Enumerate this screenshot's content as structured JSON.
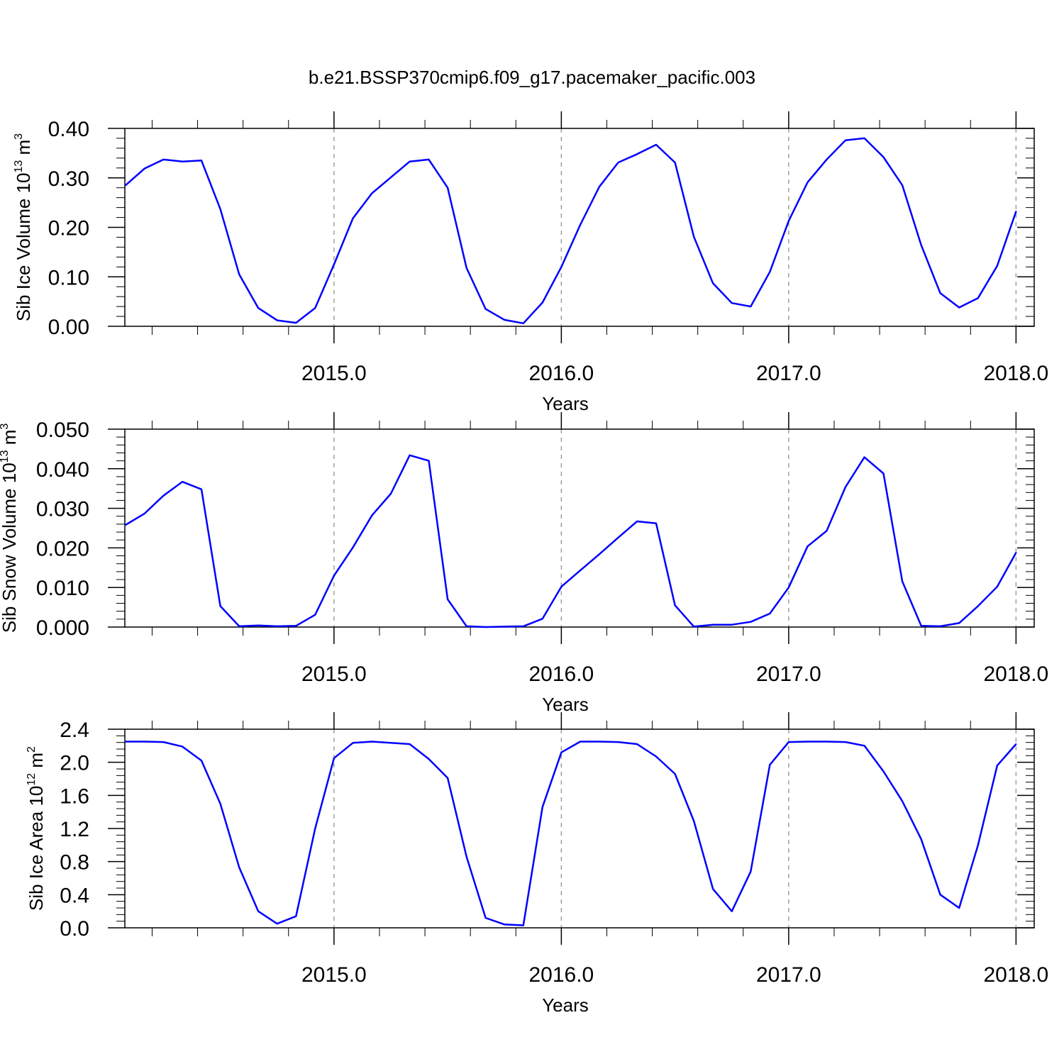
{
  "title": "b.e21.BSSP370cmip6.f09_g17.pacemaker_pacific.003",
  "colors": {
    "line": "#0000ff",
    "frame": "#000000",
    "ref_line": "#a0a0a0"
  },
  "chart_data": [
    {
      "type": "line",
      "ylabel": {
        "text": "Sib Ice Volume 10",
        "exp": "13",
        "unit": " m",
        "unit_exp": "3"
      },
      "xlabel": "Years",
      "xlim": [
        2014.08,
        2018.08
      ],
      "ylim": [
        0,
        0.4
      ],
      "yticks": [
        "0.00",
        "0.10",
        "0.20",
        "0.30",
        "0.40"
      ],
      "xticks": [
        "2015.0",
        "2016.0",
        "2017.0",
        "2018.0"
      ],
      "x": [
        2014.083,
        2014.167,
        2014.25,
        2014.333,
        2014.417,
        2014.5,
        2014.583,
        2014.667,
        2014.75,
        2014.833,
        2014.917,
        2015.0,
        2015.083,
        2015.167,
        2015.25,
        2015.333,
        2015.417,
        2015.5,
        2015.583,
        2015.667,
        2015.75,
        2015.833,
        2015.917,
        2016.0,
        2016.083,
        2016.167,
        2016.25,
        2016.333,
        2016.417,
        2016.5,
        2016.583,
        2016.667,
        2016.75,
        2016.833,
        2016.917,
        2017.0,
        2017.083,
        2017.167,
        2017.25,
        2017.333,
        2017.417,
        2017.5,
        2017.583,
        2017.667,
        2017.75,
        2017.833,
        2017.917,
        2018.0
      ],
      "series": [
        {
          "values": [
            0.285,
            0.319,
            0.337,
            0.333,
            0.335,
            0.237,
            0.105,
            0.037,
            0.012,
            0.007,
            0.037,
            0.125,
            0.218,
            0.269,
            0.301,
            0.333,
            0.337,
            0.28,
            0.118,
            0.035,
            0.013,
            0.006,
            0.048,
            0.12,
            0.205,
            0.282,
            0.331,
            0.348,
            0.367,
            0.331,
            0.181,
            0.087,
            0.047,
            0.04,
            0.11,
            0.213,
            0.291,
            0.337,
            0.376,
            0.38,
            0.342,
            0.285,
            0.164,
            0.067,
            0.038,
            0.057,
            0.122,
            0.232
          ]
        }
      ]
    },
    {
      "type": "line",
      "ylabel": {
        "text": "Sib Snow Volume 10",
        "exp": "13",
        "unit": " m",
        "unit_exp": "3"
      },
      "xlabel": "Years",
      "xlim": [
        2014.08,
        2018.08
      ],
      "ylim": [
        0,
        0.05
      ],
      "yticks": [
        "0.000",
        "0.010",
        "0.020",
        "0.030",
        "0.040",
        "0.050"
      ],
      "xticks": [
        "2015.0",
        "2016.0",
        "2017.0",
        "2018.0"
      ],
      "x": [
        2014.083,
        2014.167,
        2014.25,
        2014.333,
        2014.417,
        2014.5,
        2014.583,
        2014.667,
        2014.75,
        2014.833,
        2014.917,
        2015.0,
        2015.083,
        2015.167,
        2015.25,
        2015.333,
        2015.417,
        2015.5,
        2015.583,
        2015.667,
        2015.75,
        2015.833,
        2015.917,
        2016.0,
        2016.083,
        2016.167,
        2016.25,
        2016.333,
        2016.417,
        2016.5,
        2016.583,
        2016.667,
        2016.75,
        2016.833,
        2016.917,
        2017.0,
        2017.083,
        2017.167,
        2017.25,
        2017.333,
        2017.417,
        2017.5,
        2017.583,
        2017.667,
        2017.75,
        2017.833,
        2017.917,
        2018.0
      ],
      "series": [
        {
          "values": [
            0.0258,
            0.0287,
            0.0332,
            0.0367,
            0.0348,
            0.0053,
            0.0002,
            0.0004,
            0.0002,
            0.0003,
            0.0031,
            0.013,
            0.0201,
            0.0282,
            0.0337,
            0.0434,
            0.042,
            0.007,
            0.0002,
            0.0,
            0.0001,
            0.0002,
            0.0021,
            0.0102,
            0.0143,
            0.0184,
            0.0226,
            0.0267,
            0.0262,
            0.0055,
            0.0001,
            0.0006,
            0.0006,
            0.0013,
            0.0034,
            0.01,
            0.0204,
            0.0243,
            0.0354,
            0.0429,
            0.0388,
            0.0115,
            0.0003,
            0.0002,
            0.001,
            0.0053,
            0.0102,
            0.0188
          ]
        }
      ]
    },
    {
      "type": "line",
      "ylabel": {
        "text": "Sib Ice Area 10",
        "exp": "12",
        "unit": " m",
        "unit_exp": "2"
      },
      "xlabel": "Years",
      "xlim": [
        2014.08,
        2018.08
      ],
      "ylim": [
        0,
        2.4
      ],
      "yticks": [
        "0.0",
        "0.4",
        "0.8",
        "1.2",
        "1.6",
        "2.0",
        "2.4"
      ],
      "xticks": [
        "2015.0",
        "2016.0",
        "2017.0",
        "2018.0"
      ],
      "x": [
        2014.083,
        2014.167,
        2014.25,
        2014.333,
        2014.417,
        2014.5,
        2014.583,
        2014.667,
        2014.75,
        2014.833,
        2014.917,
        2015.0,
        2015.083,
        2015.167,
        2015.25,
        2015.333,
        2015.417,
        2015.5,
        2015.583,
        2015.667,
        2015.75,
        2015.833,
        2015.917,
        2016.0,
        2016.083,
        2016.167,
        2016.25,
        2016.333,
        2016.417,
        2016.5,
        2016.583,
        2016.667,
        2016.75,
        2016.833,
        2016.917,
        2017.0,
        2017.083,
        2017.167,
        2017.25,
        2017.333,
        2017.417,
        2017.5,
        2017.583,
        2017.667,
        2017.75,
        2017.833,
        2017.917,
        2018.0
      ],
      "series": [
        {
          "values": [
            2.25,
            2.25,
            2.245,
            2.19,
            2.02,
            1.5,
            0.73,
            0.2,
            0.05,
            0.14,
            1.2,
            2.05,
            2.235,
            2.25,
            2.235,
            2.22,
            2.04,
            1.81,
            0.86,
            0.12,
            0.04,
            0.03,
            1.46,
            2.12,
            2.25,
            2.25,
            2.245,
            2.22,
            2.07,
            1.86,
            1.29,
            0.47,
            0.2,
            0.68,
            1.97,
            2.245,
            2.25,
            2.25,
            2.245,
            2.2,
            1.89,
            1.53,
            1.07,
            0.4,
            0.24,
            1.0,
            1.96,
            2.22
          ]
        }
      ]
    }
  ]
}
